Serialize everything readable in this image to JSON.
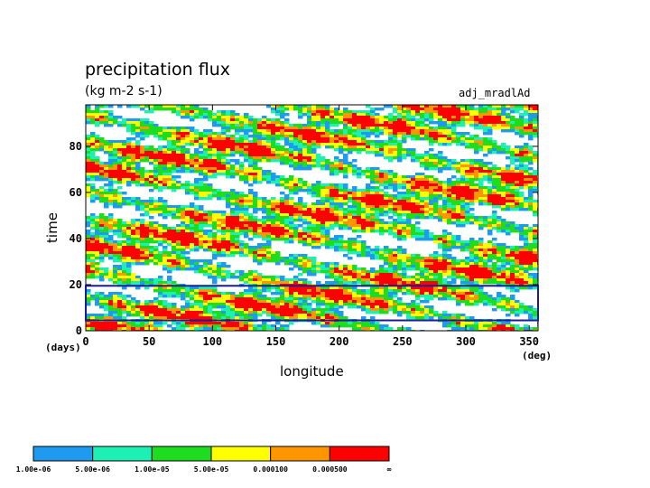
{
  "chart_data": {
    "type": "heatmap",
    "title": "precipitation flux",
    "subtitle": "(kg m-2 s-1)",
    "run_label": "adj_mradlAd",
    "xlabel": "longitude",
    "ylabel": "time",
    "x_unit": "(deg)",
    "y_unit": "(days)",
    "xlim": [
      0,
      357
    ],
    "ylim": [
      0,
      98
    ],
    "x_ticks": [
      0,
      50,
      100,
      150,
      200,
      250,
      300,
      350
    ],
    "y_ticks": [
      0,
      20,
      40,
      60,
      80
    ],
    "highlight_box": {
      "x_range": [
        0,
        357
      ],
      "y_range": [
        4.5,
        19.5
      ]
    },
    "colorbar": {
      "levels": [
        "1.00e-06",
        "5.00e-06",
        "1.00e-05",
        "5.00e-05",
        "0.000100",
        "0.000500",
        "∞"
      ],
      "colors": [
        "#1e9bf0",
        "#1ef0b4",
        "#1edc1e",
        "#ffff00",
        "#ff9600",
        "#ff0000"
      ]
    }
  }
}
